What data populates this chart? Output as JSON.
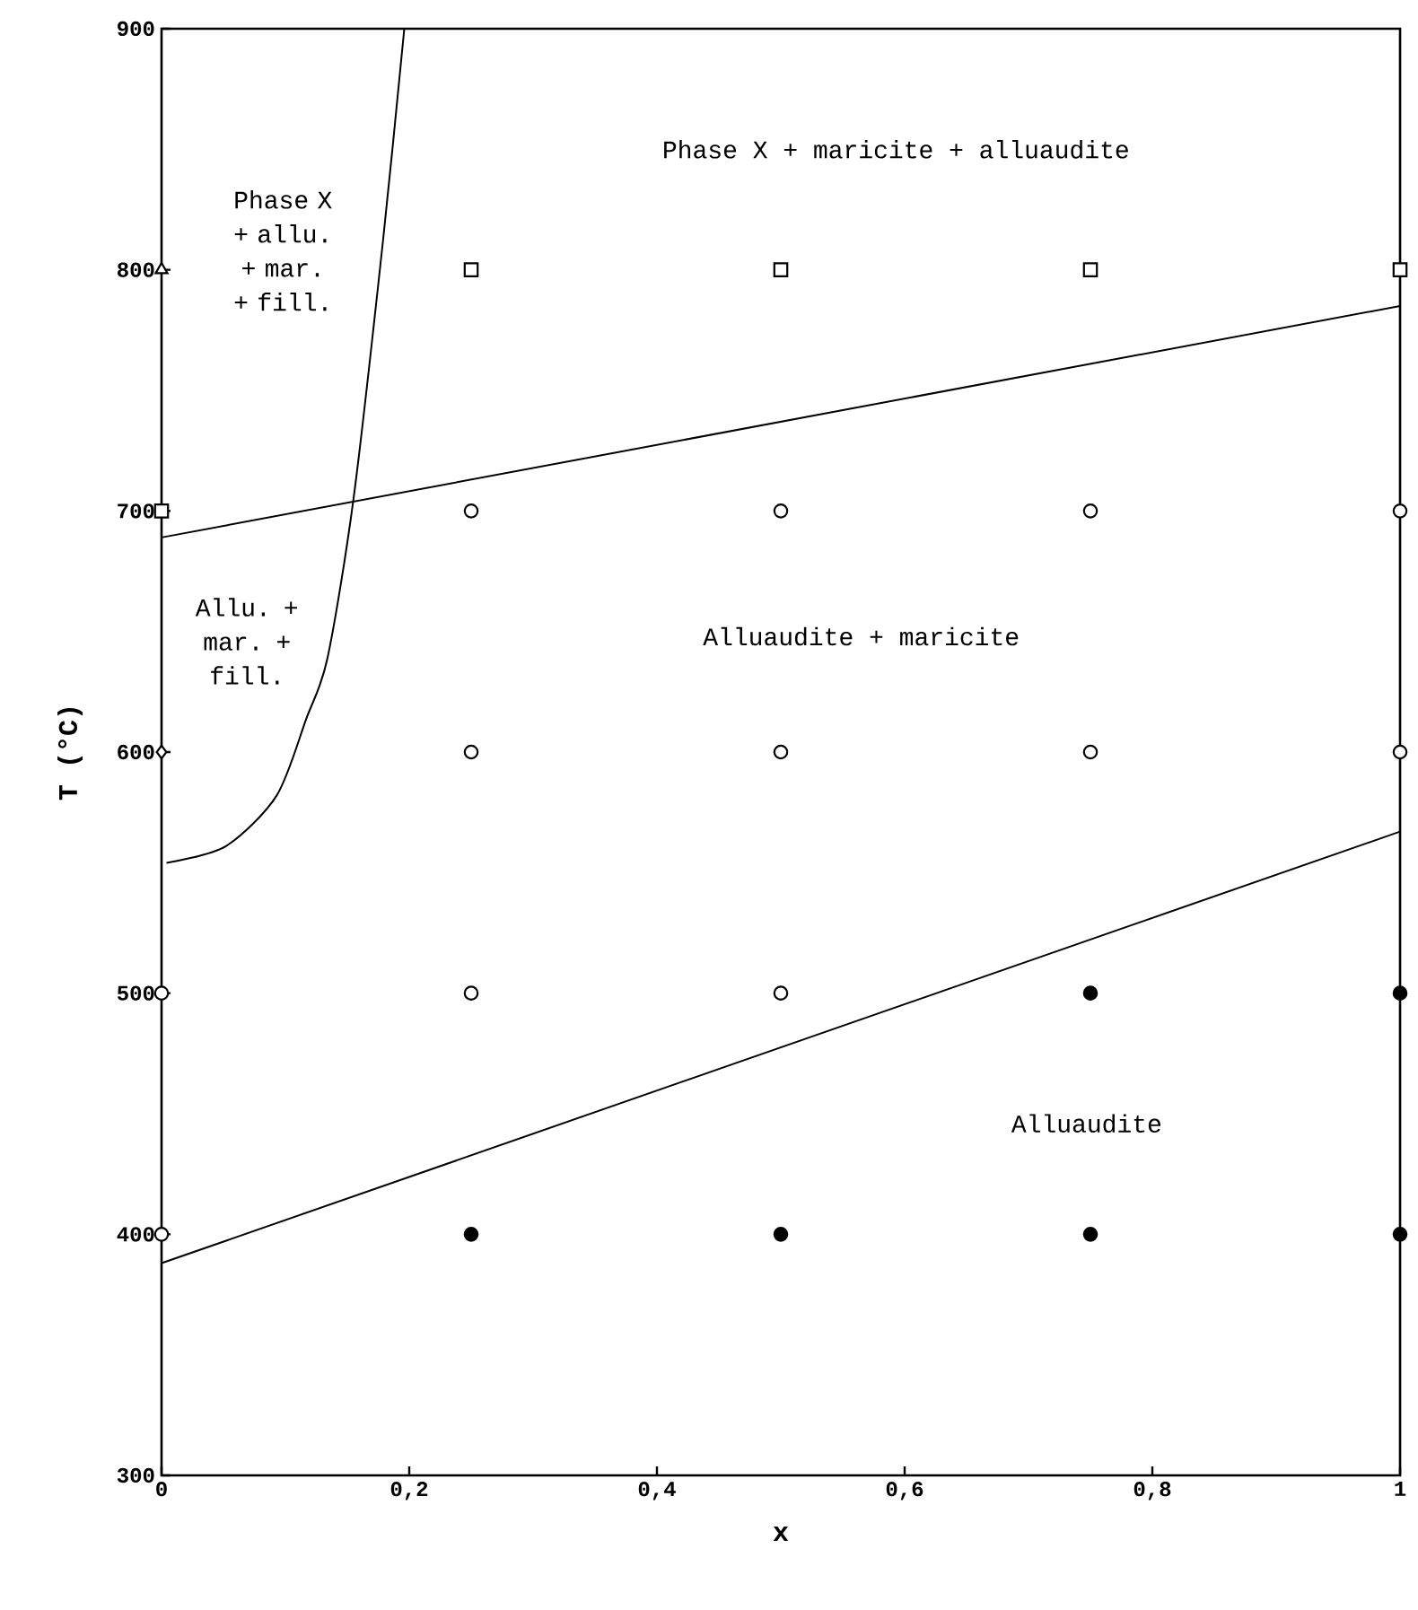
{
  "chart_data": {
    "type": "scatter",
    "xlabel": "x",
    "ylabel": "T (°C)",
    "xlim": [
      0,
      1
    ],
    "ylim": [
      300,
      900
    ],
    "xticks": [
      0,
      {
        "value": 0.2,
        "label": "0,2"
      },
      {
        "value": 0.4,
        "label": "0,4"
      },
      {
        "value": 0.6,
        "label": "0,6"
      },
      {
        "value": 0.8,
        "label": "0,8"
      },
      1
    ],
    "yticks": [
      300,
      400,
      500,
      600,
      700,
      800,
      900
    ],
    "series": [
      {
        "marker": "square",
        "color": "#ffffff",
        "x": [
          0.25,
          0.5,
          0.75,
          1,
          0
        ],
        "values": [
          800,
          800,
          800,
          800,
          700
        ]
      },
      {
        "marker": "triangle",
        "color": "#ffffff",
        "x": [
          0
        ],
        "values": [
          800
        ]
      },
      {
        "marker": "diamond",
        "color": "#ffffff",
        "x": [
          0
        ],
        "values": [
          600
        ]
      },
      {
        "marker": "circle",
        "color": "#ffffff",
        "x": [
          0,
          0,
          0.25,
          0.5,
          0.75,
          1,
          0.25,
          0.5,
          0.75,
          1,
          0.25,
          0.5
        ],
        "values": [
          500,
          400,
          700,
          700,
          700,
          700,
          600,
          600,
          600,
          600,
          500,
          500
        ]
      },
      {
        "marker": "circle",
        "color": "#000000",
        "x": [
          0.75,
          1,
          0.25,
          0.5,
          0.75,
          1
        ],
        "values": [
          500,
          500,
          400,
          400,
          400,
          400
        ]
      },
      {
        "type": "line",
        "marker": "none",
        "color": "#000000",
        "x": [
          0,
          1
        ],
        "values": [
          689,
          785
        ]
      },
      {
        "type": "line",
        "marker": "none",
        "color": "#000000",
        "x": [
          0,
          1
        ],
        "values": [
          388,
          567
        ]
      },
      {
        "type": "line",
        "marker": "none",
        "color": "#000000",
        "x": [
          0.004,
          0.052,
          0.093,
          0.117,
          0.134,
          0.155,
          0.179,
          0.196
        ],
        "values": [
          554,
          561,
          582,
          614,
          639,
          705,
          813,
          900
        ]
      }
    ],
    "annotations": [
      "Phase X + maricite + alluaudite",
      "Phase X + allu. + mar. + fill.",
      "Allu. + mar. + fill.",
      "Alluaudite + maricite",
      "Alluaudite"
    ]
  }
}
